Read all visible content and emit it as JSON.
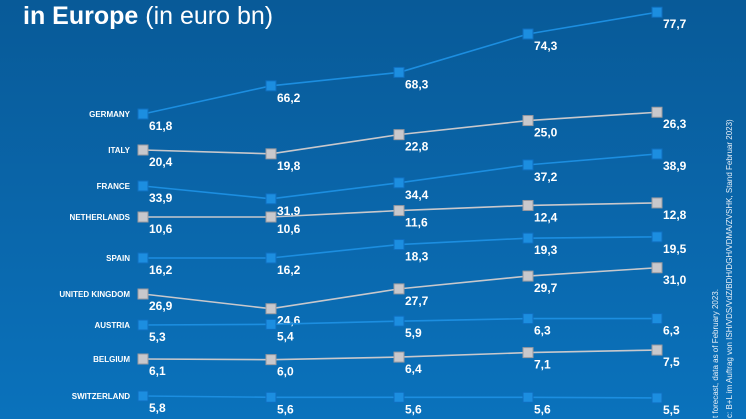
{
  "title": {
    "bold": "in Europe",
    "light": "(in euro bn)"
  },
  "footnotes": [
    "t forecast, data as of February 2023.",
    "c: B+L im Auftrag von ISH/VDS/VdZ/BDH/DGH/VDMA/ZVSHK, Stand Februar 2023)"
  ],
  "colors": {
    "blue": "#1c8ee0",
    "gray": "#c8c8cc",
    "background": "#0a66aa"
  },
  "chart_data": {
    "type": "line",
    "points_per_series": 5,
    "series": [
      {
        "name": "GERMANY",
        "color": "blue",
        "values": [
          61.8,
          66.2,
          68.3,
          74.3,
          77.7
        ],
        "labels": [
          "61,8",
          "66,2",
          "68,3",
          "74,3",
          "77,7"
        ]
      },
      {
        "name": "ITALY",
        "color": "gray",
        "values": [
          20.4,
          19.8,
          22.8,
          25.0,
          26.3
        ],
        "labels": [
          "20,4",
          "19,8",
          "22,8",
          "25,0",
          "26,3"
        ]
      },
      {
        "name": "FRANCE",
        "color": "blue",
        "values": [
          33.9,
          31.9,
          34.4,
          37.2,
          38.9
        ],
        "labels": [
          "33,9",
          "31,9",
          "34,4",
          "37,2",
          "38,9"
        ]
      },
      {
        "name": "NETHERLANDS",
        "color": "gray",
        "values": [
          10.6,
          10.6,
          11.6,
          12.4,
          12.8
        ],
        "labels": [
          "10,6",
          "10,6",
          "11,6",
          "12,4",
          "12,8"
        ]
      },
      {
        "name": "SPAIN",
        "color": "blue",
        "values": [
          16.2,
          16.2,
          18.3,
          19.3,
          19.5
        ],
        "labels": [
          "16,2",
          "16,2",
          "18,3",
          "19,3",
          "19,5"
        ]
      },
      {
        "name": "UNITED KINGDOM",
        "color": "gray",
        "values": [
          26.9,
          24.6,
          27.7,
          29.7,
          31.0
        ],
        "labels": [
          "26,9",
          "24,6",
          "27,7",
          "29,7",
          "31,0"
        ]
      },
      {
        "name": "AUSTRIA",
        "color": "blue",
        "values": [
          5.3,
          5.4,
          5.9,
          6.3,
          6.3
        ],
        "labels": [
          "5,3",
          "5,4",
          "5,9",
          "6,3",
          "6,3"
        ]
      },
      {
        "name": "BELGIUM",
        "color": "gray",
        "values": [
          6.1,
          6.0,
          6.4,
          7.1,
          7.5
        ],
        "labels": [
          "6,1",
          "6,0",
          "6,4",
          "7,1",
          "7,5"
        ]
      },
      {
        "name": "SWITZERLAND",
        "color": "blue",
        "values": [
          5.8,
          5.6,
          5.6,
          5.6,
          5.5
        ],
        "labels": [
          "5,8",
          "5,6",
          "5,6",
          "5,6",
          "5,5"
        ]
      }
    ]
  }
}
